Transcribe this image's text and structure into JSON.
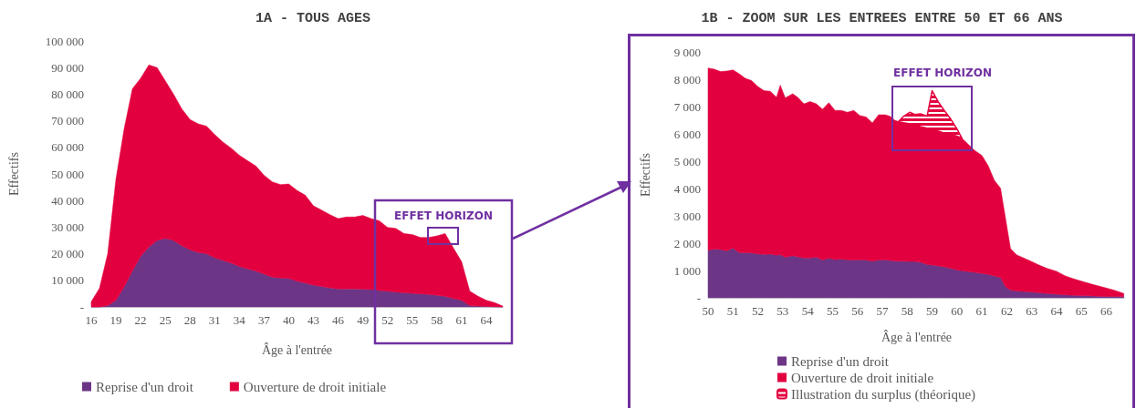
{
  "chart_data": [
    {
      "type": "area",
      "title": "1A - TOUS AGES",
      "xlabel": "Âge à l'entrée",
      "ylabel": "Effectifs",
      "stacked": true,
      "grid": false,
      "legend": "bottom",
      "x": [
        16,
        17,
        18,
        19,
        20,
        21,
        22,
        23,
        24,
        25,
        26,
        27,
        28,
        29,
        30,
        31,
        32,
        33,
        34,
        35,
        36,
        37,
        38,
        39,
        40,
        41,
        42,
        43,
        44,
        45,
        46,
        47,
        48,
        49,
        50,
        51,
        52,
        53,
        54,
        55,
        56,
        57,
        58,
        59,
        60,
        61,
        62,
        63,
        64,
        65,
        66
      ],
      "xlim": [
        16,
        66
      ],
      "xticks": [
        16,
        19,
        22,
        25,
        28,
        31,
        34,
        37,
        40,
        43,
        46,
        49,
        52,
        55,
        58,
        61,
        64
      ],
      "ylim": [
        0,
        100000
      ],
      "yticks": [
        {
          "value": 0,
          "label": "-"
        },
        {
          "value": 10000,
          "label": "10 000"
        },
        {
          "value": 20000,
          "label": "20 000"
        },
        {
          "value": 30000,
          "label": "30 000"
        },
        {
          "value": 40000,
          "label": "40 000"
        },
        {
          "value": 50000,
          "label": "50 000"
        },
        {
          "value": 60000,
          "label": "60 000"
        },
        {
          "value": 70000,
          "label": "70 000"
        },
        {
          "value": 80000,
          "label": "80 000"
        },
        {
          "value": 90000,
          "label": "90 000"
        },
        {
          "value": 100000,
          "label": "100 000"
        }
      ],
      "annotations": [
        "EFFET HORIZON"
      ],
      "series": [
        {
          "name": "Reprise d'un droit",
          "color": "#6c3586",
          "values": [
            0,
            0,
            500,
            2500,
            7500,
            13500,
            19000,
            22500,
            25000,
            25800,
            25000,
            23000,
            21500,
            20500,
            20000,
            18500,
            17500,
            16500,
            15200,
            14300,
            13500,
            12300,
            11200,
            10900,
            10700,
            9700,
            9000,
            8200,
            7700,
            7200,
            6800,
            6800,
            6800,
            6700,
            6600,
            6200,
            5900,
            5600,
            5300,
            5100,
            4900,
            4700,
            4400,
            4000,
            3200,
            2500,
            500,
            300,
            200,
            100,
            0
          ]
        },
        {
          "name": "Ouverture de droit initiale",
          "color": "#e3003f",
          "values": [
            2000,
            7000,
            19500,
            45500,
            59500,
            68500,
            67000,
            68500,
            65000,
            59200,
            55000,
            51500,
            49000,
            48300,
            48000,
            46300,
            44500,
            43200,
            41800,
            40700,
            39500,
            37200,
            35800,
            35100,
            35500,
            34100,
            33000,
            29800,
            28700,
            27500,
            26400,
            27000,
            27000,
            27700,
            26600,
            26200,
            24000,
            23900,
            22300,
            22100,
            21200,
            21400,
            22300,
            23600,
            19000,
            14500,
            5400,
            3700,
            2300,
            1500,
            300
          ]
        }
      ]
    },
    {
      "type": "area",
      "title": "1B - ZOOM SUR LES ENTREES ENTRE 50 ET 66 ANS",
      "xlabel": "Âge à l'entrée",
      "ylabel": "Effectifs",
      "stacked": true,
      "grid": false,
      "legend": "bottom",
      "x": [
        50,
        50.25,
        50.5,
        50.75,
        51,
        51.25,
        51.5,
        51.75,
        52,
        52.25,
        52.5,
        52.75,
        52.9,
        53.1,
        53.4,
        53.6,
        53.85,
        54.1,
        54.35,
        54.6,
        54.85,
        55.1,
        55.35,
        55.6,
        55.85,
        56.1,
        56.35,
        56.6,
        56.85,
        57.1,
        57.3,
        57.5,
        57.65,
        57.85,
        58.1,
        58.3,
        58.55,
        58.8,
        59,
        59.25,
        59.5,
        59.75,
        60,
        60.2,
        60.45,
        60.7,
        61,
        61.25,
        61.5,
        61.75,
        61.95,
        62.15,
        62.4,
        62.9,
        63.25,
        63.6,
        64,
        64.35,
        64.7,
        65.1,
        65.45,
        65.9,
        66.3,
        66.7
      ],
      "xlim": [
        50,
        66.75
      ],
      "xticks": [
        50,
        51,
        52,
        53,
        54,
        55,
        56,
        57,
        58,
        59,
        60,
        61,
        62,
        63,
        64,
        65,
        66
      ],
      "ylim": [
        0,
        9000
      ],
      "yticks": [
        {
          "value": 0,
          "label": "-"
        },
        {
          "value": 1000,
          "label": "1 000"
        },
        {
          "value": 2000,
          "label": "2 000"
        },
        {
          "value": 3000,
          "label": "3 000"
        },
        {
          "value": 4000,
          "label": "4 000"
        },
        {
          "value": 5000,
          "label": "5 000"
        },
        {
          "value": 6000,
          "label": "6 000"
        },
        {
          "value": 7000,
          "label": "7 000"
        },
        {
          "value": 8000,
          "label": "8 000"
        },
        {
          "value": 9000,
          "label": "9 000"
        }
      ],
      "annotations": [
        "EFFET HORIZON"
      ],
      "series": [
        {
          "name": "Reprise d'un droit",
          "color": "#6c3586",
          "values": [
            1740,
            1780,
            1770,
            1720,
            1820,
            1660,
            1650,
            1640,
            1610,
            1590,
            1600,
            1560,
            1580,
            1480,
            1540,
            1500,
            1460,
            1460,
            1490,
            1380,
            1450,
            1400,
            1420,
            1390,
            1380,
            1390,
            1380,
            1340,
            1380,
            1390,
            1370,
            1350,
            1340,
            1340,
            1330,
            1330,
            1300,
            1220,
            1200,
            1170,
            1130,
            1080,
            1020,
            990,
            960,
            930,
            890,
            860,
            800,
            740,
            400,
            280,
            250,
            220,
            190,
            160,
            130,
            110,
            90,
            80,
            70,
            50,
            50,
            40
          ]
        },
        {
          "name": "Ouverture de droit initiale",
          "color": "#e3003f",
          "values": [
            6670,
            6590,
            6510,
            6580,
            6520,
            6540,
            6380,
            6310,
            6120,
            5990,
            5960,
            5780,
            6200,
            5840,
            5930,
            5840,
            5640,
            5720,
            5610,
            5520,
            5690,
            5460,
            5440,
            5400,
            5480,
            5280,
            5240,
            5060,
            5320,
            5310,
            5280,
            5150,
            5110,
            5070,
            5040,
            5000,
            4960,
            4990,
            4950,
            4930,
            4900,
            4900,
            4900,
            4850,
            4660,
            4470,
            4320,
            3980,
            3500,
            3270,
            2500,
            1520,
            1320,
            1150,
            1030,
            920,
            840,
            690,
            600,
            500,
            420,
            330,
            230,
            120
          ]
        },
        {
          "name": "Illustration du surplus (théorique)",
          "color": "#e3003f",
          "values": [
            null,
            null,
            null,
            null,
            null,
            null,
            null,
            null,
            null,
            null,
            null,
            null,
            null,
            null,
            null,
            null,
            null,
            null,
            null,
            null,
            null,
            null,
            null,
            null,
            null,
            null,
            null,
            null,
            null,
            null,
            null,
            null,
            0,
            230,
            420,
            380,
            470,
            440,
            1430,
            1070,
            810,
            560,
            260,
            0,
            null,
            null,
            null,
            null,
            null,
            null,
            null,
            null,
            null,
            null,
            null,
            null,
            null,
            null,
            null,
            null,
            null,
            null,
            null,
            null
          ]
        }
      ]
    }
  ]
}
